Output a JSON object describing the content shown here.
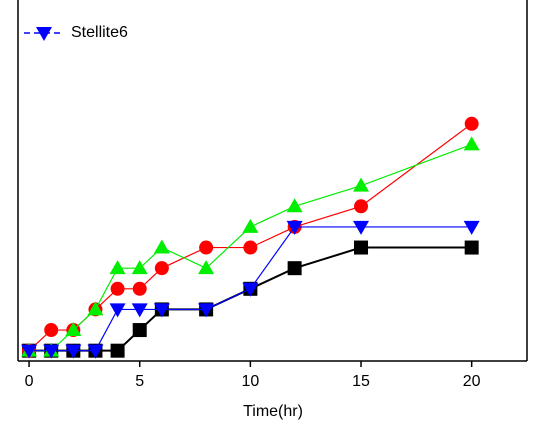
{
  "chart_data": {
    "type": "line",
    "x_label": "Time(hr)",
    "x": [
      0,
      1,
      2,
      3,
      4,
      5,
      6,
      8,
      10,
      12,
      15,
      20
    ],
    "xlim": [
      -0.5,
      22.5
    ],
    "xticks": [
      0,
      5,
      10,
      15,
      20
    ],
    "ylim": [
      -0.5,
      17
    ],
    "series": [
      {
        "color": "#000000",
        "marker": "square",
        "values": [
          0,
          0,
          0,
          0,
          0,
          1,
          2,
          2,
          3,
          4,
          5,
          5
        ]
      },
      {
        "color": "#ff0000",
        "marker": "circle",
        "values": [
          0,
          1,
          1,
          2,
          3,
          3,
          4,
          5,
          5,
          6,
          7,
          11
        ]
      },
      {
        "color": "#00ee00",
        "marker": "triangle-up",
        "values": [
          0,
          0,
          1,
          2,
          4,
          4,
          5,
          4,
          6,
          7,
          8,
          10
        ]
      },
      {
        "name": "Stellite6",
        "color": "#0000ff",
        "marker": "triangle-down",
        "values": [
          0,
          0,
          0,
          0,
          2,
          2,
          2,
          2,
          3,
          6,
          6,
          6
        ]
      }
    ],
    "legend": "upper-left"
  }
}
